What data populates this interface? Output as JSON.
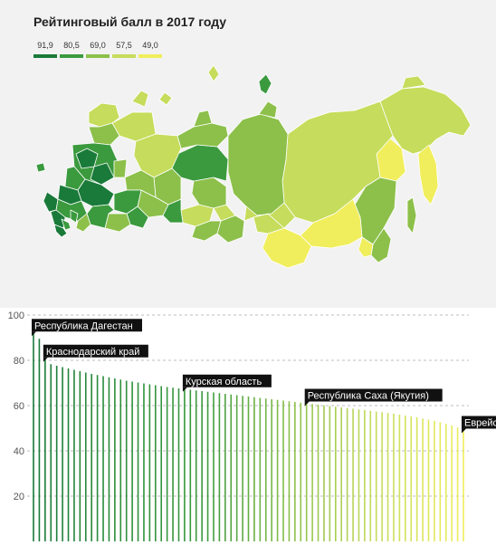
{
  "title": "Рейтинговый балл в 2017 году",
  "legend": [
    {
      "label": "91,9",
      "color": "#1a7a3a"
    },
    {
      "label": "80,5",
      "color": "#3b9a3e"
    },
    {
      "label": "69,0",
      "color": "#8cc04a"
    },
    {
      "label": "57,5",
      "color": "#c6dc5c"
    },
    {
      "label": "49,0",
      "color": "#f0ee5c"
    }
  ],
  "chart_data": {
    "type": "bar",
    "ylim": [
      0,
      100
    ],
    "yticks": [
      "20",
      "40",
      "60",
      "80",
      "100"
    ],
    "values": [
      91.9,
      89.5,
      80.5,
      78.3,
      77.6,
      77.0,
      76.4,
      75.8,
      75.2,
      74.6,
      74.0,
      73.5,
      73.0,
      72.5,
      72.0,
      71.5,
      71.0,
      70.6,
      70.2,
      69.8,
      69.4,
      69.0,
      68.6,
      68.2,
      67.9,
      67.6,
      67.3,
      67.0,
      66.7,
      66.4,
      66.1,
      65.8,
      65.5,
      65.2,
      64.9,
      64.6,
      64.3,
      64.0,
      63.7,
      63.4,
      63.1,
      62.8,
      62.5,
      62.2,
      61.9,
      61.6,
      61.3,
      61.0,
      60.7,
      60.4,
      60.1,
      59.8,
      59.5,
      59.2,
      58.9,
      58.6,
      58.3,
      58.0,
      57.7,
      57.4,
      57.1,
      56.8,
      56.4,
      56.0,
      55.6,
      55.2,
      54.8,
      54.3,
      53.8,
      53.3,
      52.7,
      52.0,
      51.2,
      50.3,
      49.0
    ],
    "color_stops": [
      "#1a7a3a",
      "#2e8f3c",
      "#3b9a3e",
      "#8cc04a",
      "#c6dc5c",
      "#f0ee5c"
    ],
    "annotations": [
      {
        "label": "Республика Дагестан",
        "index": 0
      },
      {
        "label": "Краснодарский край",
        "index": 2
      },
      {
        "label": "Курская область",
        "index": 26
      },
      {
        "label": "Республика Саха (Якутия)",
        "index": 47
      },
      {
        "label": "Еврейская автономная область",
        "index": 74
      }
    ]
  }
}
